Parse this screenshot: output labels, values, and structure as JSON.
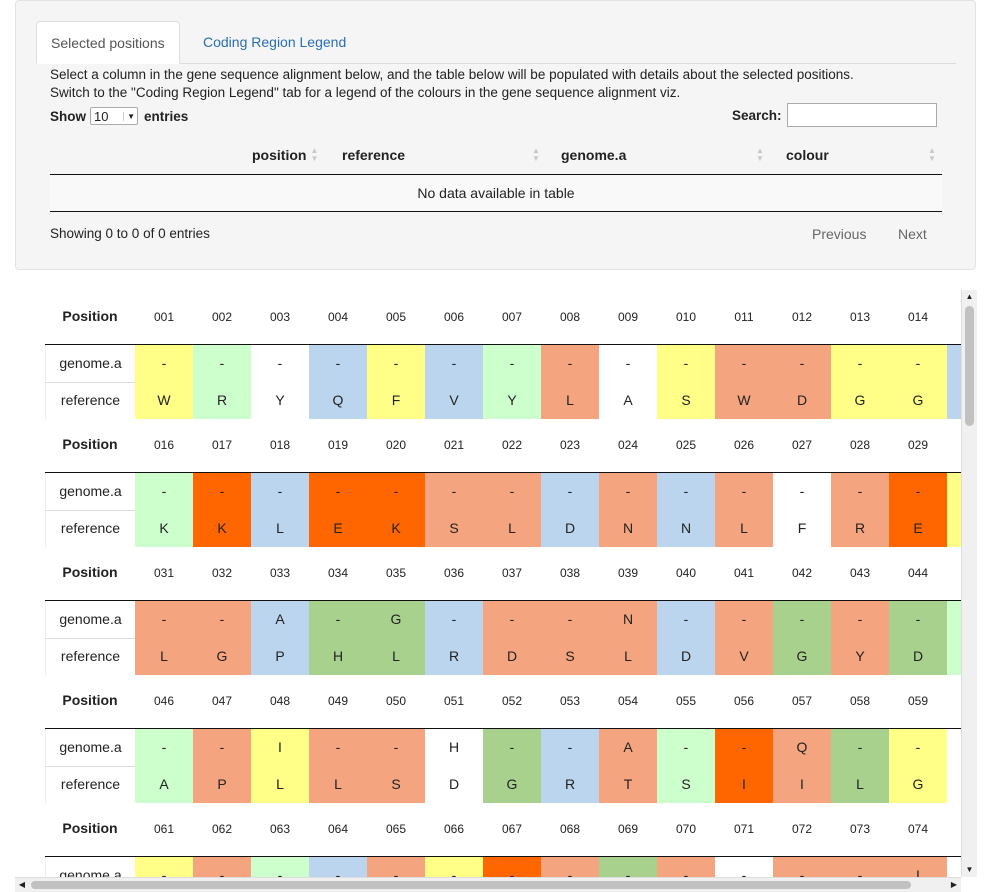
{
  "tabs": [
    {
      "label": "Selected positions",
      "active": true
    },
    {
      "label": "Coding Region Legend",
      "active": false
    }
  ],
  "description": {
    "line1": "Select a column in the gene sequence alignment below, and the table below will be populated with details about the selected positions.",
    "line2": "Switch to the \"Coding Region Legend\" tab for a legend of the colours in the gene sequence alignment viz."
  },
  "length": {
    "show_label": "Show",
    "value": "10",
    "entries_label": "entries"
  },
  "search": {
    "label": "Search:",
    "value": ""
  },
  "table": {
    "columns": [
      "position",
      "reference",
      "genome.a",
      "colour"
    ],
    "empty_text": "No data available in table"
  },
  "info": "Showing 0 to 0 of 0 entries",
  "pager": {
    "previous": "Previous",
    "next": "Next"
  },
  "colors": {
    "Y": "#ffff88",
    "G": "#ccffcc",
    "B": "#bbd5ee",
    "S": "#f4a47e",
    "O": "#ff6600",
    "D": "#a8d18d",
    "W": "#ffffff"
  },
  "alignment": {
    "position_label": "Position",
    "row_labels": [
      "genome.a",
      "reference"
    ],
    "blocks": [
      {
        "positions": [
          "001",
          "002",
          "003",
          "004",
          "005",
          "006",
          "007",
          "008",
          "009",
          "010",
          "011",
          "012",
          "013",
          "014"
        ],
        "genome": [
          "-",
          "-",
          "-",
          "-",
          "-",
          "-",
          "-",
          "-",
          "-",
          "-",
          "-",
          "-",
          "-",
          "-"
        ],
        "reference": [
          "W",
          "R",
          "Y",
          "Q",
          "F",
          "V",
          "Y",
          "L",
          "A",
          "S",
          "W",
          "D",
          "G",
          "G"
        ],
        "colors": [
          "Y",
          "G",
          "W",
          "B",
          "Y",
          "B",
          "G",
          "S",
          "W",
          "Y",
          "S",
          "S",
          "Y",
          "Y"
        ],
        "edge": "B"
      },
      {
        "positions": [
          "016",
          "017",
          "018",
          "019",
          "020",
          "021",
          "022",
          "023",
          "024",
          "025",
          "026",
          "027",
          "028",
          "029"
        ],
        "genome": [
          "-",
          "-",
          "-",
          "-",
          "-",
          "-",
          "-",
          "-",
          "-",
          "-",
          "-",
          "-",
          "-",
          "-"
        ],
        "reference": [
          "K",
          "K",
          "L",
          "E",
          "K",
          "S",
          "L",
          "D",
          "N",
          "N",
          "L",
          "F",
          "R",
          "E"
        ],
        "colors": [
          "G",
          "O",
          "B",
          "O",
          "O",
          "S",
          "S",
          "B",
          "S",
          "B",
          "S",
          "W",
          "S",
          "O"
        ],
        "edge": "Y"
      },
      {
        "positions": [
          "031",
          "032",
          "033",
          "034",
          "035",
          "036",
          "037",
          "038",
          "039",
          "040",
          "041",
          "042",
          "043",
          "044"
        ],
        "genome": [
          "-",
          "-",
          "A",
          "-",
          "G",
          "-",
          "-",
          "-",
          "N",
          "-",
          "-",
          "-",
          "-",
          "-"
        ],
        "reference": [
          "L",
          "G",
          "P",
          "H",
          "L",
          "R",
          "D",
          "S",
          "L",
          "D",
          "V",
          "G",
          "Y",
          "D"
        ],
        "colors": [
          "S",
          "S",
          "B",
          "D",
          "D",
          "B",
          "S",
          "S",
          "S",
          "B",
          "S",
          "D",
          "S",
          "D"
        ],
        "edge": "G"
      },
      {
        "positions": [
          "046",
          "047",
          "048",
          "049",
          "050",
          "051",
          "052",
          "053",
          "054",
          "055",
          "056",
          "057",
          "058",
          "059"
        ],
        "genome": [
          "-",
          "-",
          "I",
          "-",
          "-",
          "H",
          "-",
          "-",
          "A",
          "-",
          "-",
          "Q",
          "-",
          "-"
        ],
        "reference": [
          "A",
          "P",
          "L",
          "L",
          "S",
          "D",
          "G",
          "R",
          "T",
          "S",
          "I",
          "I",
          "L",
          "G"
        ],
        "colors": [
          "G",
          "S",
          "Y",
          "S",
          "S",
          "W",
          "D",
          "B",
          "S",
          "G",
          "O",
          "S",
          "D",
          "Y"
        ],
        "edge": "W"
      },
      {
        "positions": [
          "061",
          "062",
          "063",
          "064",
          "065",
          "066",
          "067",
          "068",
          "069",
          "070",
          "071",
          "072",
          "073",
          "074"
        ],
        "genome": [
          "-",
          "-",
          "-",
          "-",
          "-",
          "-",
          "-",
          "-",
          "-",
          "-",
          "-",
          "-",
          "-",
          "I"
        ],
        "reference": [
          "",
          "",
          "",
          "",
          "",
          "",
          "",
          "",
          "",
          "",
          "",
          "",
          "",
          ""
        ],
        "colors": [
          "Y",
          "S",
          "G",
          "B",
          "S",
          "Y",
          "O",
          "S",
          "D",
          "S",
          "W",
          "S",
          "S",
          "S"
        ],
        "edge": "W"
      }
    ]
  }
}
